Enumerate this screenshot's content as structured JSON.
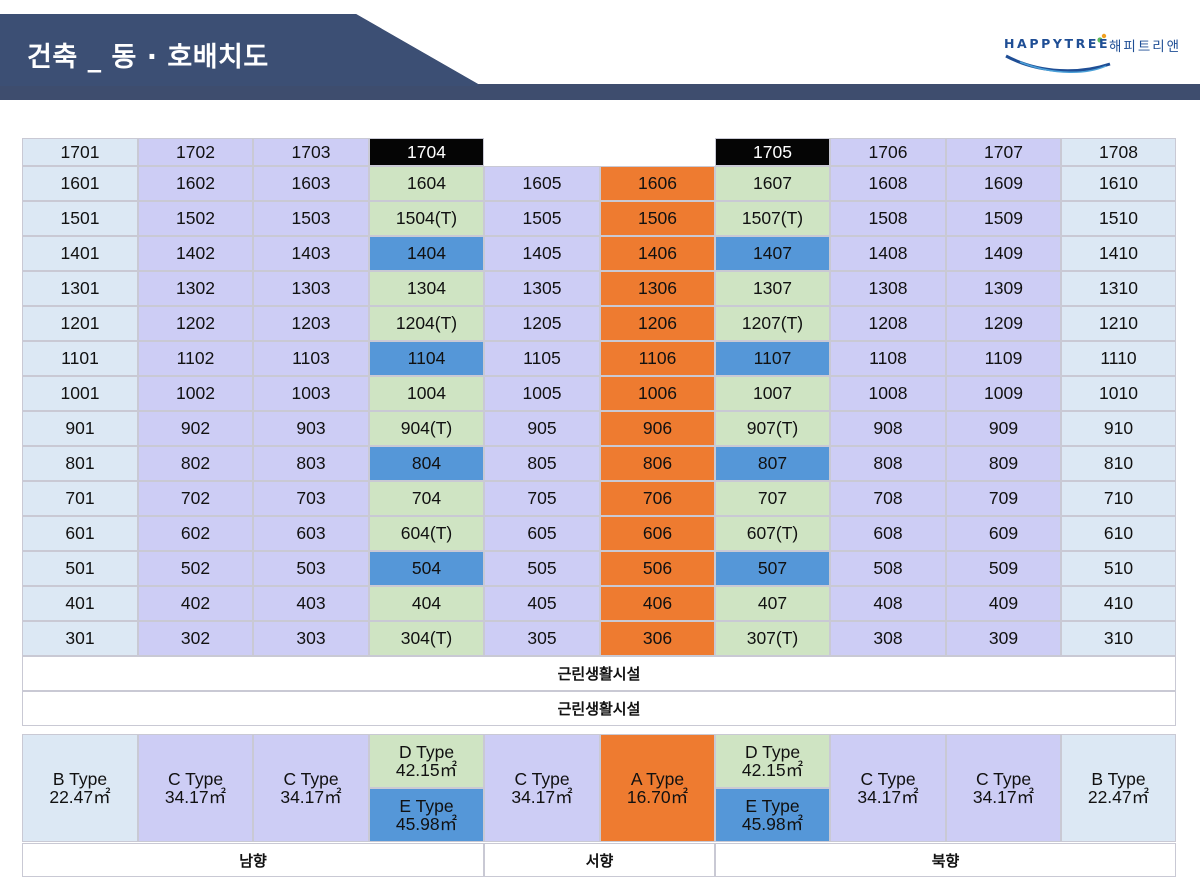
{
  "header": {
    "title": "건축 _ 동 · 호배치도",
    "logo_en": "HAPPYTREE",
    "logo_kr": "해피트리앤",
    "colors": {
      "dark": "#3c4f74",
      "band": "#3e4d6e",
      "accent": "#1f4e95"
    }
  },
  "units": {
    "columns": [
      "ltblue",
      "lav",
      "lav",
      "green",
      "lav",
      "orange",
      "green",
      "lav",
      "lav",
      "ltblue"
    ],
    "rows": [
      [
        "1701",
        "1702",
        "1703",
        "1704",
        "",
        "",
        "1705",
        "1706",
        "1707",
        "1708"
      ],
      [
        "1601",
        "1602",
        "1603",
        "1604",
        "1605",
        "1606",
        "1607",
        "1608",
        "1609",
        "1610"
      ],
      [
        "1501",
        "1502",
        "1503",
        "1504(T)",
        "1505",
        "1506",
        "1507(T)",
        "1508",
        "1509",
        "1510"
      ],
      [
        "1401",
        "1402",
        "1403",
        "1404",
        "1405",
        "1406",
        "1407",
        "1408",
        "1409",
        "1410"
      ],
      [
        "1301",
        "1302",
        "1303",
        "1304",
        "1305",
        "1306",
        "1307",
        "1308",
        "1309",
        "1310"
      ],
      [
        "1201",
        "1202",
        "1203",
        "1204(T)",
        "1205",
        "1206",
        "1207(T)",
        "1208",
        "1209",
        "1210"
      ],
      [
        "1101",
        "1102",
        "1103",
        "1104",
        "1105",
        "1106",
        "1107",
        "1108",
        "1109",
        "1110"
      ],
      [
        "1001",
        "1002",
        "1003",
        "1004",
        "1005",
        "1006",
        "1007",
        "1008",
        "1009",
        "1010"
      ],
      [
        "901",
        "902",
        "903",
        "904(T)",
        "905",
        "906",
        "907(T)",
        "908",
        "909",
        "910"
      ],
      [
        "801",
        "802",
        "803",
        "804",
        "805",
        "806",
        "807",
        "808",
        "809",
        "810"
      ],
      [
        "701",
        "702",
        "703",
        "704",
        "705",
        "706",
        "707",
        "708",
        "709",
        "710"
      ],
      [
        "601",
        "602",
        "603",
        "604(T)",
        "605",
        "606",
        "607(T)",
        "608",
        "609",
        "610"
      ],
      [
        "501",
        "502",
        "503",
        "504",
        "505",
        "506",
        "507",
        "508",
        "509",
        "510"
      ],
      [
        "401",
        "402",
        "403",
        "404",
        "405",
        "406",
        "407",
        "408",
        "409",
        "410"
      ],
      [
        "301",
        "302",
        "303",
        "304(T)",
        "305",
        "306",
        "307(T)",
        "308",
        "309",
        "310"
      ]
    ],
    "blue_rows": [
      3,
      6,
      9,
      12
    ],
    "black_cells": [
      [
        0,
        3
      ],
      [
        0,
        6
      ]
    ],
    "empty_cells": [
      [
        0,
        4
      ],
      [
        0,
        5
      ]
    ]
  },
  "facilities": [
    "근린생활시설",
    "근린생활시설"
  ],
  "types": [
    {
      "name": "B Type",
      "area": "22.47㎡",
      "color": "ltblue"
    },
    {
      "name": "C Type",
      "area": "34.17㎡",
      "color": "lav"
    },
    {
      "name": "C Type",
      "area": "34.17㎡",
      "color": "lav"
    },
    {
      "split": true,
      "top": {
        "name": "D Type",
        "area": "42.15㎡",
        "color": "green"
      },
      "bottom": {
        "name": "E Type",
        "area": "45.98㎡",
        "color": "blue"
      }
    },
    {
      "name": "C Type",
      "area": "34.17㎡",
      "color": "lav"
    },
    {
      "name": "A Type",
      "area": "16.70㎡",
      "color": "orange"
    },
    {
      "split": true,
      "top": {
        "name": "D Type",
        "area": "42.15㎡",
        "color": "green"
      },
      "bottom": {
        "name": "E Type",
        "area": "45.98㎡",
        "color": "blue"
      }
    },
    {
      "name": "C Type",
      "area": "34.17㎡",
      "color": "lav"
    },
    {
      "name": "C Type",
      "area": "34.17㎡",
      "color": "lav"
    },
    {
      "name": "B Type",
      "area": "22.47㎡",
      "color": "ltblue"
    }
  ],
  "directions": [
    {
      "label": "남향",
      "span": 4
    },
    {
      "label": "서향",
      "span": 2
    },
    {
      "label": "북향",
      "span": 4
    }
  ]
}
